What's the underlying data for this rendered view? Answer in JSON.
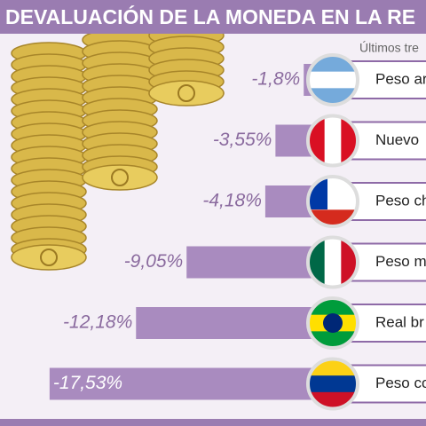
{
  "chart_data": {
    "type": "bar",
    "orientation": "horizontal",
    "title": "DEVALUACIÓN DE LA MONEDA EN LA RE",
    "subtitle": "Últimos tre",
    "categories": [
      "Peso ar",
      "Nuevo",
      "Peso ch",
      "Peso m",
      "Real br",
      "Peso co"
    ],
    "values": [
      -1.8,
      -3.55,
      -4.18,
      -9.05,
      -12.18,
      -17.53
    ],
    "value_labels": [
      "-1,8%",
      "-3,55%",
      "-4,18%",
      "-9,05%",
      "-12,18%",
      "-17,53%"
    ],
    "color": "#a98bbf",
    "xlim": [
      -19.5,
      0
    ]
  }
}
